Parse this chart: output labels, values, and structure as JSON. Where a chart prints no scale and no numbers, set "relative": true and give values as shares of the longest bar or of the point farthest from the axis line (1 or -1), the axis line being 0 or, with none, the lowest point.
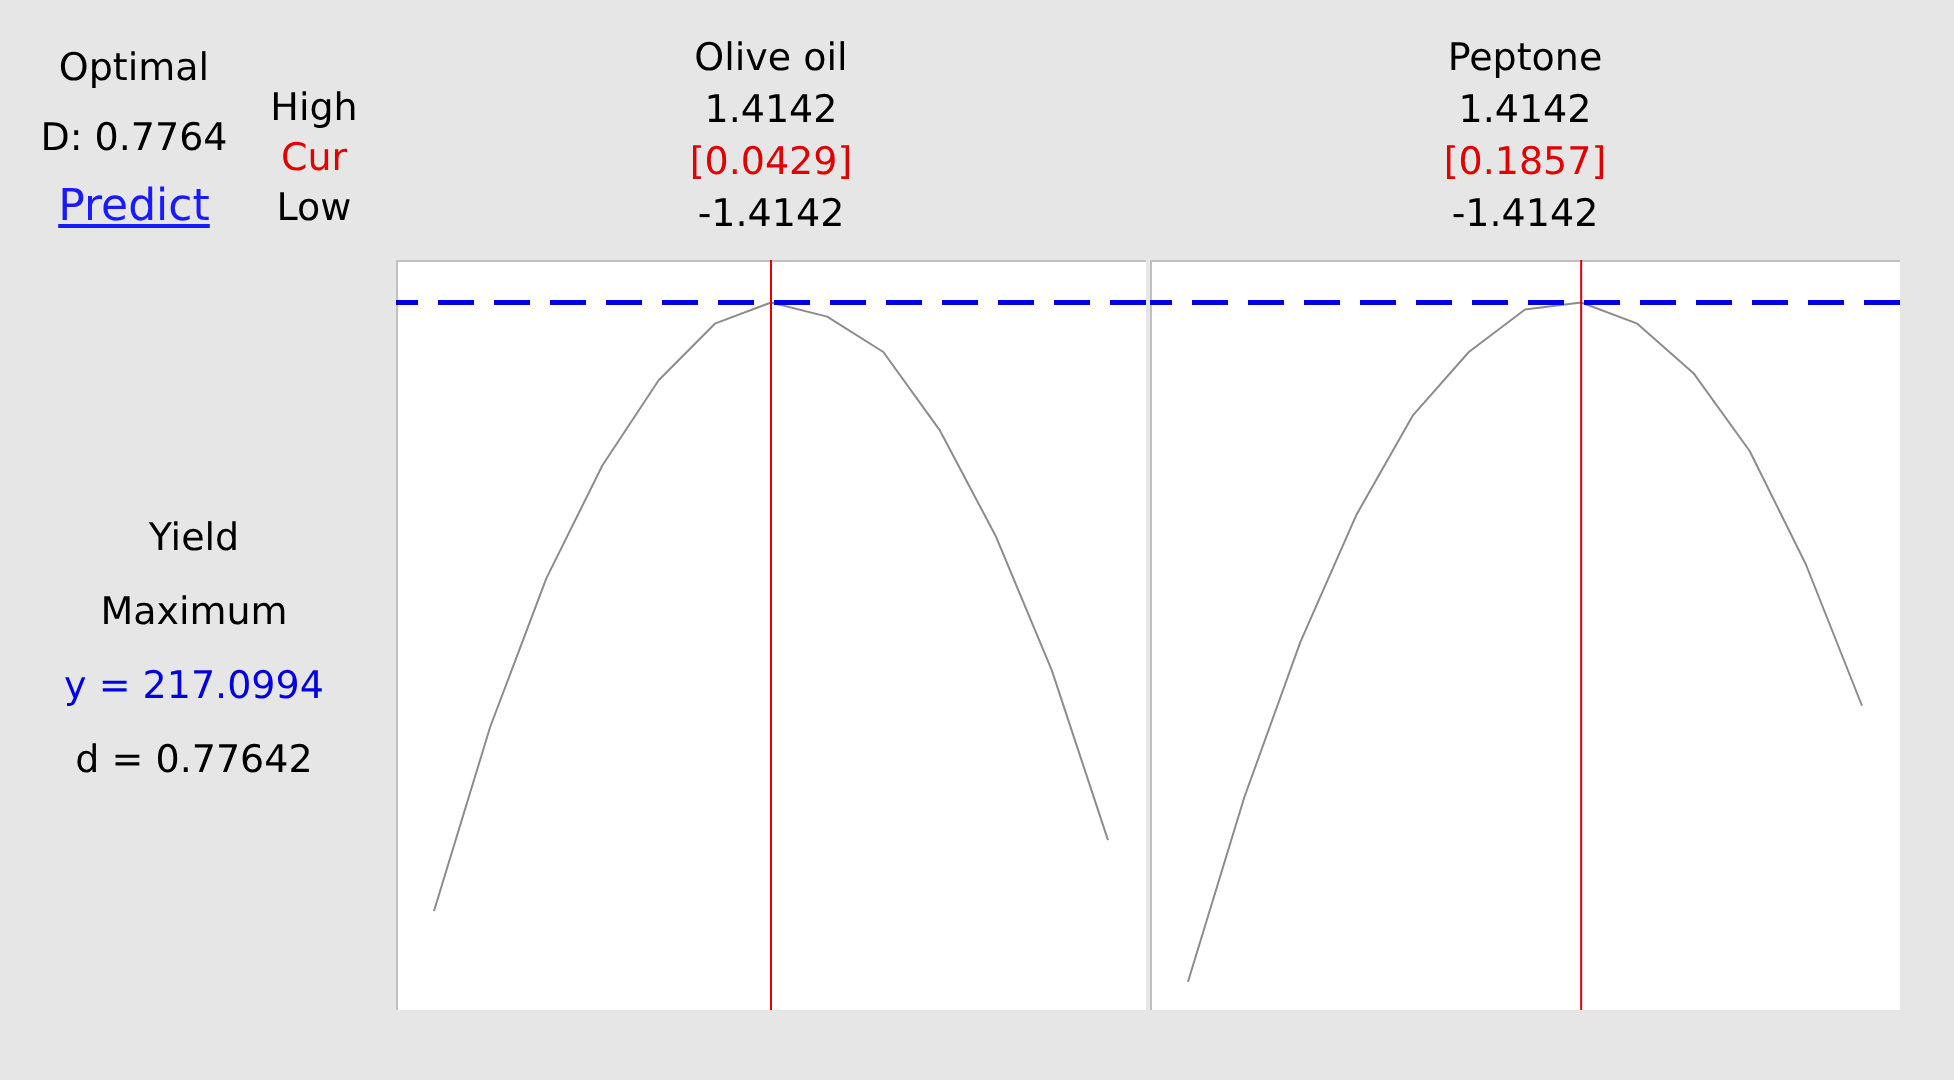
{
  "chart_data": [
    {
      "type": "line",
      "title": "Olive oil",
      "relative": true,
      "categories": [
        null,
        null,
        null,
        null,
        null,
        null,
        null,
        null,
        null,
        null,
        null,
        null,
        null
      ],
      "series": [
        {
          "color": "#8c8c8c",
          "values": [
            0.14,
            0.4,
            0.61,
            0.77,
            0.89,
            0.97,
            1.0,
            0.98,
            0.93,
            0.82,
            0.67,
            0.48,
            0.24
          ]
        }
      ],
      "ref_lines": [
        {
          "axis": "y",
          "value": 1,
          "color": "#0000e0",
          "line_style": "dashed"
        }
      ],
      "annotations": [
        "1.4142",
        "[0.0429]",
        "-1.4142",
        "Optimal",
        "D: 0.7764",
        "Predict",
        "High",
        "Cur",
        "Low",
        "Yield",
        "Maximum",
        "y = 217.0994",
        "d = 0.77642"
      ]
    },
    {
      "type": "line",
      "title": "Peptone",
      "relative": true,
      "categories": [
        null,
        null,
        null,
        null,
        null,
        null,
        null,
        null,
        null,
        null,
        null,
        null,
        null
      ],
      "series": [
        {
          "color": "#8c8c8c",
          "values": [
            0.04,
            0.3,
            0.52,
            0.7,
            0.84,
            0.93,
            0.99,
            1.0,
            0.97,
            0.9,
            0.79,
            0.63,
            0.43
          ]
        }
      ],
      "ref_lines": [
        {
          "axis": "y",
          "value": 1,
          "color": "#0000e0",
          "line_style": "dashed"
        }
      ],
      "annotations": [
        "1.4142",
        "[0.1857]",
        "-1.4142"
      ]
    }
  ]
}
